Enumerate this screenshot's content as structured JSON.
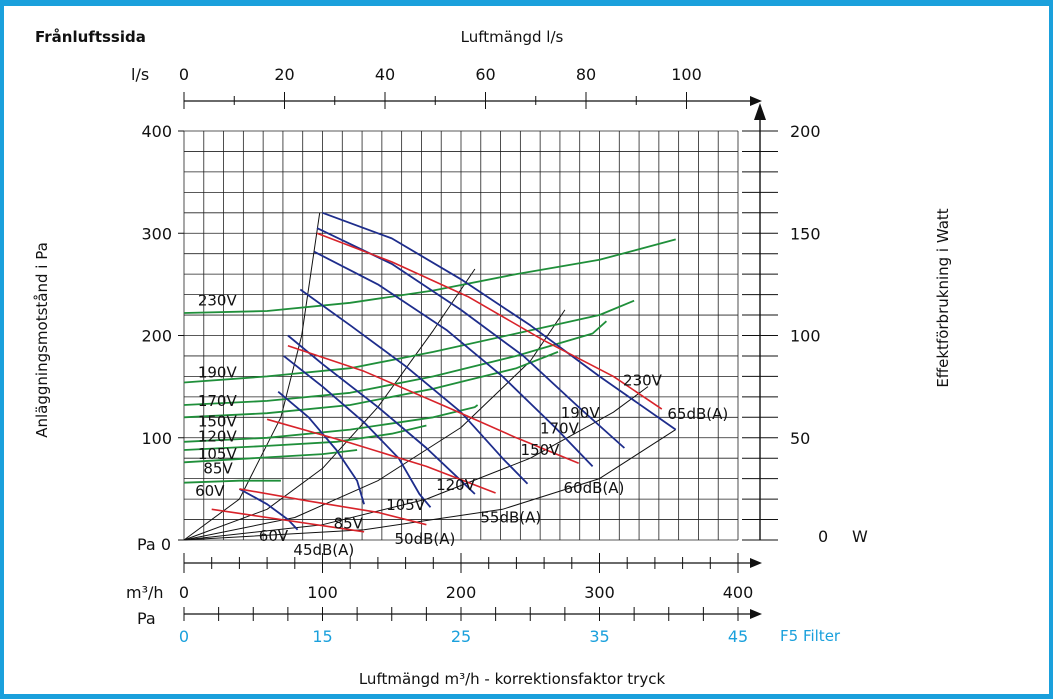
{
  "corner_label": "Frånluftssida",
  "top_axis": {
    "title": "Luftmängd l/s",
    "unit": "l/s",
    "ticks": [
      "0",
      "20",
      "40",
      "60",
      "80",
      "100"
    ]
  },
  "left_axis": {
    "title": "Anläggningsmotstånd i Pa",
    "ticks": [
      "400",
      "300",
      "200",
      "100"
    ],
    "zero_label": "Pa  0"
  },
  "right_axis": {
    "title": "Effektförbrukning i Watt",
    "ticks": [
      "200",
      "150",
      "100",
      "50"
    ],
    "zero_label": "0",
    "unit": "W"
  },
  "bottom_axis_m3h": {
    "unit": "m³/h",
    "ticks": [
      "0",
      "100",
      "200",
      "300",
      "400"
    ]
  },
  "bottom_axis_pa": {
    "unit": "Pa",
    "ticks": [
      "0",
      "15",
      "25",
      "35",
      "45"
    ],
    "filter_label": "F5 Filter"
  },
  "bottom_title": "Luftmängd m³/h - korrektionsfaktor tryck",
  "colors": {
    "border": "#1aa0dc",
    "fan_curve": "#1e2d8c",
    "sound_curve": "#d8232a",
    "power_curve": "#1f8f3a",
    "system_curve": "#111111",
    "filter_axis": "#1aa0dc"
  },
  "chart_data": {
    "type": "line",
    "title": "Frånluftssida",
    "xlabel": "Luftmängd m³/h",
    "ylabel": "Anläggningsmotstånd i Pa",
    "y2label": "Effektförbrukning i Watt",
    "xlim": [
      0,
      400
    ],
    "ylim": [
      0,
      400
    ],
    "y2lim": [
      0,
      200
    ],
    "grid": true,
    "fan_curves": [
      {
        "name": "230V",
        "points": [
          [
            100,
            320
          ],
          [
            150,
            295
          ],
          [
            200,
            255
          ],
          [
            250,
            210
          ],
          [
            300,
            160
          ],
          [
            355,
            108
          ]
        ]
      },
      {
        "name": "190V",
        "points": [
          [
            96,
            305
          ],
          [
            150,
            270
          ],
          [
            200,
            225
          ],
          [
            245,
            180
          ],
          [
            285,
            130
          ],
          [
            318,
            90
          ]
        ]
      },
      {
        "name": "170V",
        "points": [
          [
            94,
            282
          ],
          [
            140,
            250
          ],
          [
            190,
            205
          ],
          [
            230,
            160
          ],
          [
            268,
            110
          ],
          [
            295,
            72
          ]
        ]
      },
      {
        "name": "150V",
        "points": [
          [
            84,
            245
          ],
          [
            120,
            210
          ],
          [
            160,
            170
          ],
          [
            200,
            125
          ],
          [
            230,
            80
          ],
          [
            248,
            55
          ]
        ]
      },
      {
        "name": "120V",
        "points": [
          [
            75,
            200
          ],
          [
            100,
            172
          ],
          [
            140,
            130
          ],
          [
            175,
            90
          ],
          [
            200,
            58
          ],
          [
            210,
            45
          ]
        ]
      },
      {
        "name": "105V",
        "points": [
          [
            72,
            180
          ],
          [
            100,
            150
          ],
          [
            130,
            115
          ],
          [
            155,
            80
          ],
          [
            170,
            45
          ],
          [
            178,
            32
          ]
        ]
      },
      {
        "name": "85V",
        "points": [
          [
            68,
            145
          ],
          [
            90,
            120
          ],
          [
            110,
            88
          ],
          [
            125,
            58
          ],
          [
            130,
            35
          ]
        ]
      },
      {
        "name": "60V",
        "points": [
          [
            40,
            50
          ],
          [
            60,
            35
          ],
          [
            75,
            20
          ],
          [
            82,
            10
          ]
        ]
      }
    ],
    "sound_curves": [
      {
        "name": "65dB(A)",
        "points": [
          [
            96,
            300
          ],
          [
            150,
            272
          ],
          [
            205,
            238
          ],
          [
            260,
            195
          ],
          [
            310,
            160
          ],
          [
            345,
            128
          ]
        ]
      },
      {
        "name": "60dB(A)",
        "points": [
          [
            75,
            190
          ],
          [
            130,
            165
          ],
          [
            190,
            130
          ],
          [
            240,
            100
          ],
          [
            285,
            75
          ]
        ]
      },
      {
        "name": "55dB(A)",
        "points": [
          [
            60,
            118
          ],
          [
            120,
            95
          ],
          [
            175,
            72
          ],
          [
            225,
            46
          ]
        ]
      },
      {
        "name": "50dB(A)",
        "points": [
          [
            40,
            50
          ],
          [
            90,
            38
          ],
          [
            140,
            27
          ],
          [
            175,
            15
          ]
        ]
      },
      {
        "name": "45dB(A)",
        "points": [
          [
            20,
            30
          ],
          [
            70,
            20
          ],
          [
            110,
            12
          ],
          [
            130,
            8
          ]
        ]
      }
    ],
    "power_curves": [
      {
        "name": "230V",
        "points": [
          [
            0,
            111
          ],
          [
            60,
            112
          ],
          [
            120,
            116
          ],
          [
            180,
            122
          ],
          [
            240,
            130
          ],
          [
            300,
            137
          ],
          [
            355,
            147
          ]
        ]
      },
      {
        "name": "190V",
        "points": [
          [
            0,
            77
          ],
          [
            60,
            80
          ],
          [
            120,
            84
          ],
          [
            180,
            92
          ],
          [
            240,
            101
          ],
          [
            300,
            110
          ],
          [
            325,
            117
          ]
        ]
      },
      {
        "name": "170V",
        "points": [
          [
            0,
            66
          ],
          [
            60,
            68
          ],
          [
            120,
            72
          ],
          [
            180,
            80
          ],
          [
            240,
            90
          ],
          [
            295,
            101
          ],
          [
            305,
            107
          ]
        ]
      },
      {
        "name": "150V",
        "points": [
          [
            0,
            60
          ],
          [
            60,
            62
          ],
          [
            120,
            66
          ],
          [
            180,
            74
          ],
          [
            240,
            84
          ],
          [
            270,
            92
          ]
        ]
      },
      {
        "name": "120V",
        "points": [
          [
            0,
            48
          ],
          [
            60,
            50
          ],
          [
            120,
            54
          ],
          [
            180,
            60
          ],
          [
            210,
            65
          ],
          [
            212,
            66
          ]
        ]
      },
      {
        "name": "105V",
        "points": [
          [
            0,
            44
          ],
          [
            60,
            46
          ],
          [
            110,
            48
          ],
          [
            150,
            52
          ],
          [
            175,
            56
          ]
        ]
      },
      {
        "name": "85V",
        "points": [
          [
            0,
            38
          ],
          [
            50,
            40
          ],
          [
            100,
            42
          ],
          [
            125,
            44
          ]
        ]
      },
      {
        "name": "60V",
        "points": [
          [
            0,
            28
          ],
          [
            40,
            29
          ],
          [
            70,
            29
          ]
        ]
      }
    ],
    "system_curves": [
      {
        "points": [
          [
            0,
            0
          ],
          [
            40,
            40
          ],
          [
            70,
            120
          ],
          [
            85,
            200
          ],
          [
            98,
            320
          ]
        ]
      },
      {
        "points": [
          [
            0,
            0
          ],
          [
            60,
            30
          ],
          [
            100,
            70
          ],
          [
            140,
            130
          ],
          [
            180,
            205
          ],
          [
            210,
            265
          ]
        ]
      },
      {
        "points": [
          [
            0,
            0
          ],
          [
            80,
            22
          ],
          [
            140,
            58
          ],
          [
            200,
            110
          ],
          [
            250,
            175
          ],
          [
            275,
            225
          ]
        ]
      },
      {
        "points": [
          [
            0,
            0
          ],
          [
            100,
            15
          ],
          [
            175,
            40
          ],
          [
            250,
            80
          ],
          [
            310,
            125
          ],
          [
            335,
            150
          ]
        ]
      },
      {
        "points": [
          [
            0,
            0
          ],
          [
            130,
            10
          ],
          [
            230,
            30
          ],
          [
            300,
            60
          ],
          [
            355,
            108
          ]
        ]
      }
    ],
    "curve_labels": [
      {
        "text": "230V",
        "at": [
          10,
          235
        ]
      },
      {
        "text": "190V",
        "at": [
          10,
          165
        ]
      },
      {
        "text": "170V",
        "at": [
          10,
          137
        ]
      },
      {
        "text": "150V",
        "at": [
          10,
          117
        ]
      },
      {
        "text": "120V",
        "at": [
          10,
          102
        ]
      },
      {
        "text": "105V",
        "at": [
          10,
          85
        ]
      },
      {
        "text": "85V",
        "at": [
          14,
          71
        ]
      },
      {
        "text": "60V",
        "at": [
          8,
          49
        ]
      },
      {
        "text": "230V",
        "at": [
          317,
          157
        ]
      },
      {
        "text": "190V",
        "at": [
          272,
          125
        ]
      },
      {
        "text": "170V",
        "at": [
          257,
          110
        ]
      },
      {
        "text": "150V",
        "at": [
          243,
          89
        ]
      },
      {
        "text": "120V",
        "at": [
          182,
          55
        ]
      },
      {
        "text": "105V",
        "at": [
          146,
          35
        ]
      },
      {
        "text": "85V",
        "at": [
          108,
          17
        ]
      },
      {
        "text": "60V",
        "at": [
          54,
          5
        ]
      },
      {
        "text": "65dB(A)",
        "at": [
          349,
          124
        ]
      },
      {
        "text": "60dB(A)",
        "at": [
          274,
          52
        ]
      },
      {
        "text": "55dB(A)",
        "at": [
          214,
          23
        ]
      },
      {
        "text": "50dB(A)",
        "at": [
          152,
          2
        ]
      },
      {
        "text": "45dB(A)",
        "at": [
          79,
          -9
        ]
      }
    ]
  }
}
